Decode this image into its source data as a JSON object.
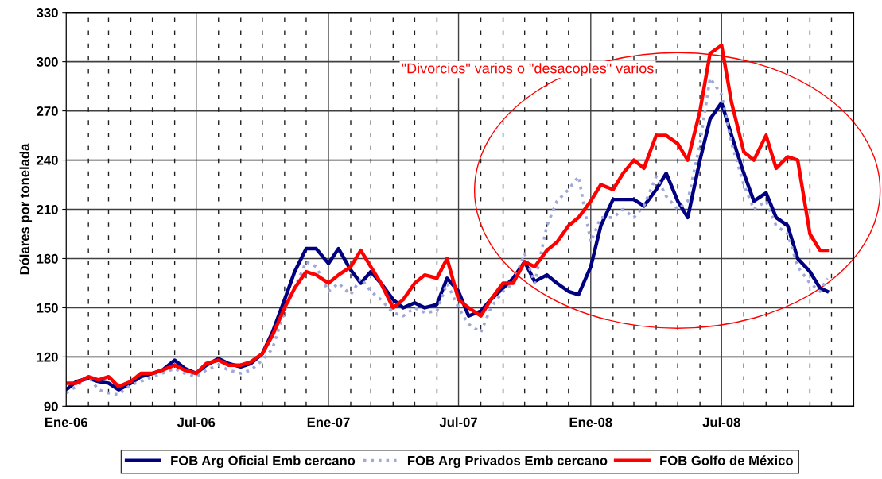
{
  "chart_data": {
    "type": "line",
    "ylabel": "Dólares por tonelada",
    "annotations": [
      "\"Divorcios\" varios o \"desacoples\" varios"
    ],
    "x": [
      "2006-01-01",
      "2006-01-15",
      "2006-02-01",
      "2006-02-15",
      "2006-03-01",
      "2006-03-15",
      "2006-04-01",
      "2006-04-15",
      "2006-05-01",
      "2006-05-15",
      "2006-06-01",
      "2006-06-15",
      "2006-07-01",
      "2006-07-15",
      "2006-08-01",
      "2006-08-15",
      "2006-09-01",
      "2006-09-15",
      "2006-10-01",
      "2006-10-15",
      "2006-11-01",
      "2006-11-15",
      "2006-12-01",
      "2006-12-15",
      "2007-01-01",
      "2007-01-15",
      "2007-02-01",
      "2007-02-15",
      "2007-03-01",
      "2007-03-15",
      "2007-04-01",
      "2007-04-15",
      "2007-05-01",
      "2007-05-15",
      "2007-06-01",
      "2007-06-15",
      "2007-07-01",
      "2007-07-15",
      "2007-08-01",
      "2007-08-15",
      "2007-09-01",
      "2007-09-15",
      "2007-10-01",
      "2007-10-15",
      "2007-11-01",
      "2007-11-15",
      "2007-12-01",
      "2007-12-15",
      "2008-01-01",
      "2008-01-15",
      "2008-02-01",
      "2008-02-15",
      "2008-03-01",
      "2008-03-15",
      "2008-04-01",
      "2008-04-15",
      "2008-05-01",
      "2008-05-15",
      "2008-06-01",
      "2008-06-15",
      "2008-07-01",
      "2008-07-15",
      "2008-08-01",
      "2008-08-15",
      "2008-09-01",
      "2008-09-15",
      "2008-10-01",
      "2008-10-15",
      "2008-11-01",
      "2008-11-15",
      "2008-11-25"
    ],
    "series": [
      {
        "name": "FOB Arg Oficial Emb cercano",
        "color": "#000080",
        "line_style": "solid",
        "values": [
          100,
          105,
          107,
          105,
          104,
          100,
          104,
          108,
          110,
          112,
          118,
          113,
          110,
          115,
          119,
          116,
          114,
          116,
          122,
          135,
          155,
          172,
          186,
          186,
          177,
          186,
          173,
          165,
          172,
          165,
          155,
          150,
          153,
          150,
          152,
          168,
          160,
          145,
          148,
          155,
          162,
          168,
          178,
          166,
          170,
          165,
          160,
          158,
          175,
          200,
          216,
          216,
          216,
          212,
          222,
          232,
          215,
          205,
          240,
          265,
          275,
          255,
          232,
          215,
          220,
          205,
          200,
          180,
          172,
          162,
          160
        ]
      },
      {
        "name": "FOB Arg Privados Emb cercano",
        "color": "#a0a8d8",
        "line_style": "dotted",
        "values": [
          98,
          102,
          108,
          100,
          98,
          97,
          103,
          105,
          108,
          110,
          113,
          110,
          108,
          112,
          115,
          112,
          110,
          112,
          118,
          125,
          148,
          162,
          178,
          175,
          160,
          165,
          158,
          168,
          160,
          155,
          147,
          145,
          150,
          147,
          148,
          165,
          150,
          140,
          135,
          150,
          160,
          165,
          183,
          165,
          200,
          215,
          222,
          230,
          190,
          205,
          205,
          210,
          205,
          212,
          230,
          218,
          210,
          215,
          250,
          290,
          280,
          250,
          225,
          210,
          215,
          200,
          195,
          175,
          165,
          160,
          168
        ]
      },
      {
        "name": "FOB Golfo de México",
        "color": "#ff0000",
        "line_style": "solid",
        "values": [
          104,
          104,
          108,
          106,
          108,
          102,
          105,
          110,
          110,
          112,
          115,
          112,
          110,
          116,
          118,
          115,
          115,
          117,
          122,
          133,
          150,
          162,
          172,
          170,
          165,
          170,
          175,
          185,
          175,
          165,
          150,
          155,
          165,
          170,
          168,
          180,
          155,
          150,
          145,
          155,
          165,
          165,
          178,
          175,
          185,
          190,
          200,
          205,
          215,
          225,
          222,
          232,
          240,
          235,
          255,
          255,
          250,
          240,
          270,
          305,
          310,
          275,
          245,
          240,
          255,
          235,
          242,
          240,
          195,
          185,
          185
        ]
      }
    ],
    "xlim": [
      "2006-01-01",
      "2009-01-01"
    ],
    "xticks": [
      {
        "value": "2006-01-01",
        "label": "Ene-06"
      },
      {
        "value": "2006-02-01",
        "label": null
      },
      {
        "value": "2006-03-01",
        "label": null
      },
      {
        "value": "2006-04-01",
        "label": null
      },
      {
        "value": "2006-05-01",
        "label": null
      },
      {
        "value": "2006-06-01",
        "label": null
      },
      {
        "value": "2006-07-01",
        "label": "Jul-06"
      },
      {
        "value": "2006-08-01",
        "label": null
      },
      {
        "value": "2006-09-01",
        "label": null
      },
      {
        "value": "2006-10-01",
        "label": null
      },
      {
        "value": "2006-11-01",
        "label": null
      },
      {
        "value": "2006-12-01",
        "label": null
      },
      {
        "value": "2007-01-01",
        "label": "Ene-07"
      },
      {
        "value": "2007-02-01",
        "label": null
      },
      {
        "value": "2007-03-01",
        "label": null
      },
      {
        "value": "2007-04-01",
        "label": null
      },
      {
        "value": "2007-05-01",
        "label": null
      },
      {
        "value": "2007-06-01",
        "label": null
      },
      {
        "value": "2007-07-01",
        "label": "Jul-07"
      },
      {
        "value": "2007-08-01",
        "label": null
      },
      {
        "value": "2007-09-01",
        "label": null
      },
      {
        "value": "2007-10-01",
        "label": null
      },
      {
        "value": "2007-11-01",
        "label": null
      },
      {
        "value": "2007-12-01",
        "label": null
      },
      {
        "value": "2008-01-01",
        "label": "Ene-08"
      },
      {
        "value": "2008-02-01",
        "label": null
      },
      {
        "value": "2008-03-01",
        "label": null
      },
      {
        "value": "2008-04-01",
        "label": null
      },
      {
        "value": "2008-05-01",
        "label": null
      },
      {
        "value": "2008-06-01",
        "label": null
      },
      {
        "value": "2008-07-01",
        "label": "Jul-08"
      },
      {
        "value": "2008-08-01",
        "label": null
      },
      {
        "value": "2008-09-01",
        "label": null
      },
      {
        "value": "2008-10-01",
        "label": null
      },
      {
        "value": "2008-11-01",
        "label": null
      },
      {
        "value": "2008-12-01",
        "label": null
      },
      {
        "value": "2009-01-01",
        "label": null
      }
    ],
    "ylim": [
      90,
      330
    ],
    "yticks": [
      90,
      120,
      150,
      180,
      210,
      240,
      270,
      300,
      330
    ],
    "grid": true,
    "legend": "bottom",
    "marker": "none"
  }
}
